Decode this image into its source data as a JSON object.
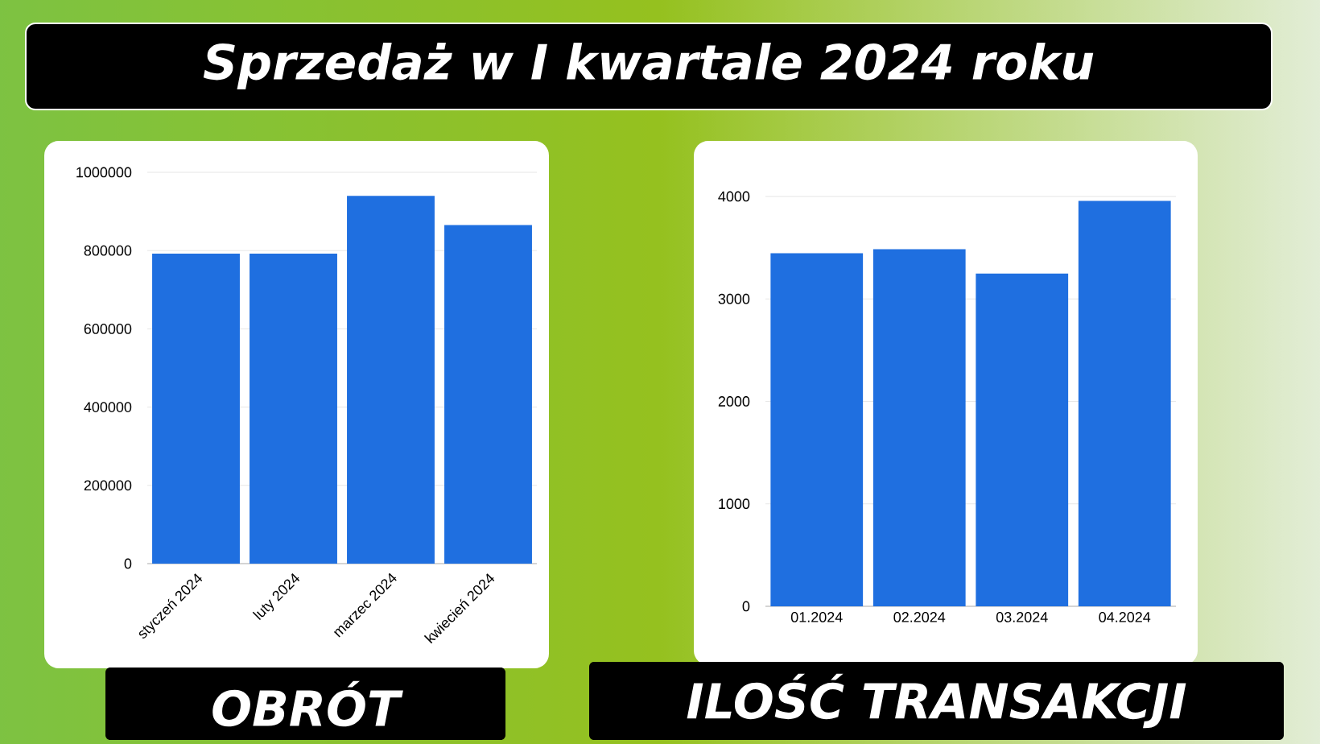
{
  "chart_data": [
    {
      "type": "bar",
      "title": "Sprzedaż w I kwartale 2024 roku",
      "xlabel": "OBRÓT",
      "categories": [
        "styczeń 2024",
        "luty 2024",
        "marzec 2024",
        "kwiecień 2024"
      ],
      "values": [
        792000,
        792000,
        940000,
        865000
      ],
      "color": "#1f6fe0",
      "ylim": [
        0,
        1000000
      ],
      "yticks": [
        0,
        200000,
        400000,
        600000,
        800000,
        1000000
      ],
      "grid": "y"
    },
    {
      "type": "bar",
      "xlabel": "ILOŚĆ TRANSAKCJI",
      "categories": [
        "01.2024",
        "02.2024",
        "03.2024",
        "04.2024"
      ],
      "values": [
        3446,
        3486,
        3248,
        3957
      ],
      "color": "#1f6fe0",
      "ylim": [
        0,
        4000
      ],
      "yticks": [
        0,
        1000,
        2000,
        3000,
        4000
      ],
      "grid": "y"
    }
  ]
}
